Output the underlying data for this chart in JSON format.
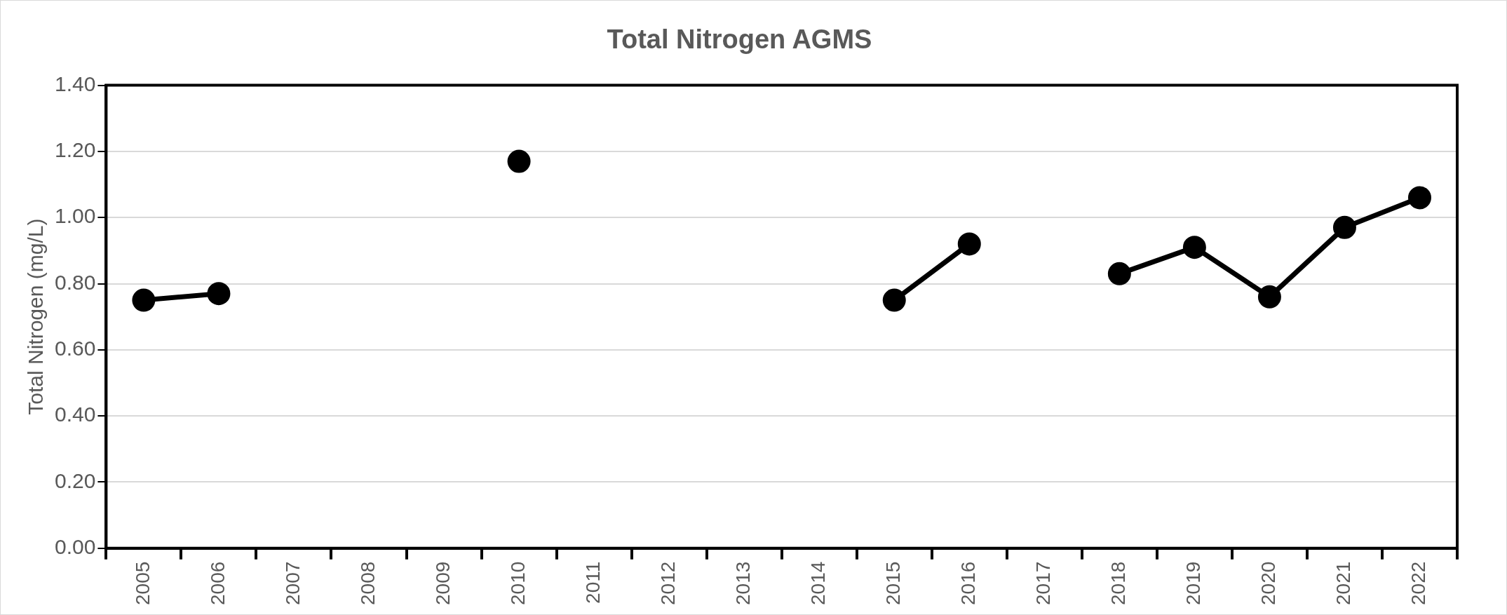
{
  "chart_data": {
    "type": "line",
    "title": "Total Nitrogen AGMS",
    "ylabel": "Total Nitrogen (mg/L)",
    "categories": [
      "2005",
      "2006",
      "2007",
      "2008",
      "2009",
      "2010",
      "2011",
      "2012",
      "2013",
      "2014",
      "2015",
      "2016",
      "2017",
      "2018",
      "2019",
      "2020",
      "2021",
      "2022"
    ],
    "series": [
      {
        "color": "#000000",
        "values": [
          0.75,
          0.77,
          null,
          null,
          null,
          1.17,
          null,
          null,
          null,
          null,
          0.75,
          0.92,
          null,
          0.83,
          0.91,
          0.76,
          0.97,
          1.06
        ]
      }
    ],
    "ylim": [
      0,
      1.4
    ],
    "yticks": [
      {
        "value": 0,
        "label": "0.00"
      },
      {
        "value": 0.2,
        "label": "0.20"
      },
      {
        "value": 0.4,
        "label": "0.40"
      },
      {
        "value": 0.6,
        "label": "0.60"
      },
      {
        "value": 0.8,
        "label": "0.80"
      },
      {
        "value": 1.0,
        "label": "1.00"
      },
      {
        "value": 1.2,
        "label": "1.20"
      },
      {
        "value": 1.4,
        "label": "1.40"
      }
    ],
    "grid": "y",
    "legend": false,
    "marker": "circle",
    "line_style": "solid"
  }
}
